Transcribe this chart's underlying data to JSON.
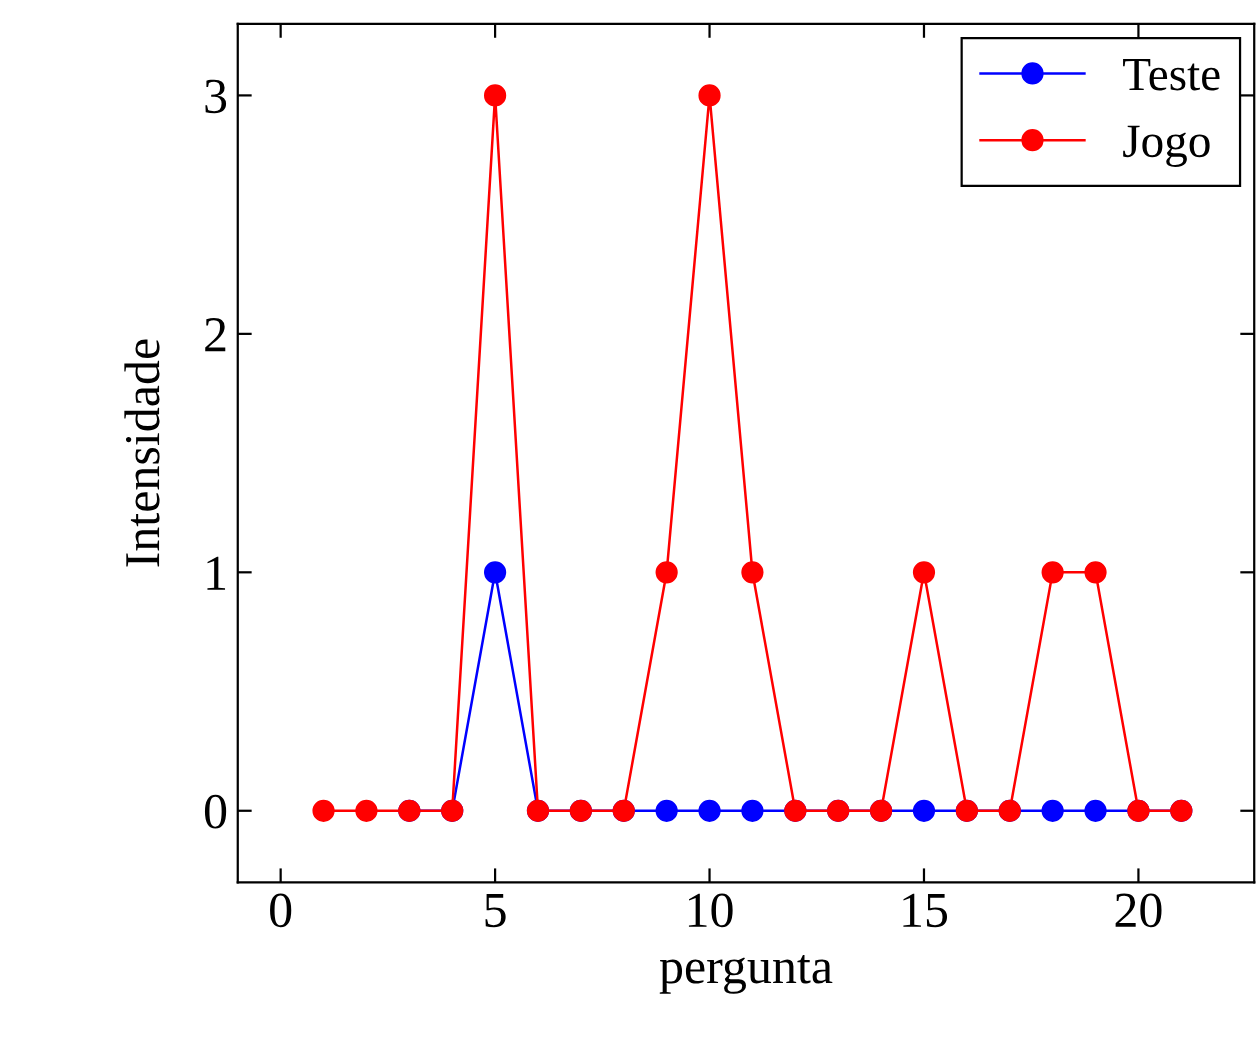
{
  "chart_data": {
    "type": "line",
    "xlabel": "pergunta",
    "ylabel": "Intensidade",
    "x": [
      1,
      2,
      3,
      4,
      5,
      6,
      7,
      8,
      9,
      10,
      11,
      12,
      13,
      14,
      15,
      16,
      17,
      18,
      19,
      20,
      21
    ],
    "series": [
      {
        "name": "Teste",
        "color": "#0000ff",
        "values": [
          null,
          null,
          0,
          0,
          1,
          0,
          0,
          0,
          0,
          0,
          0,
          0,
          0,
          0,
          0,
          0,
          0,
          0,
          0,
          0,
          0
        ]
      },
      {
        "name": "Jogo",
        "color": "#ff0000",
        "values": [
          0,
          0,
          0,
          0,
          3,
          0,
          0,
          0,
          1,
          3,
          1,
          0,
          0,
          0,
          1,
          0,
          0,
          1,
          1,
          0,
          0
        ]
      }
    ],
    "xlim": [
      -1,
      22.7
    ],
    "xticks": [
      0,
      5,
      10,
      15,
      20
    ],
    "ylim": [
      -0.3,
      3.3
    ],
    "yticks": [
      0,
      1,
      2,
      3
    ],
    "marker": "circle",
    "line_style": "solid",
    "legend": "top right",
    "grid": false
  }
}
